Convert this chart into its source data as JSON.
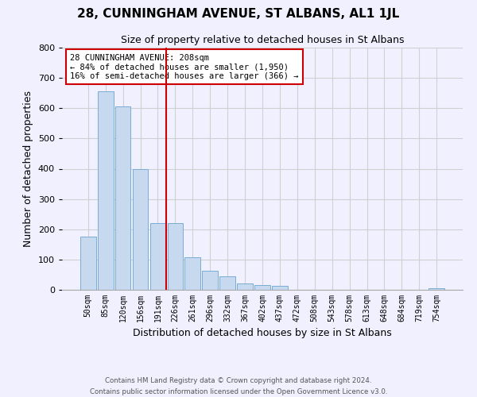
{
  "title": "28, CUNNINGHAM AVENUE, ST ALBANS, AL1 1JL",
  "subtitle": "Size of property relative to detached houses in St Albans",
  "xlabel": "Distribution of detached houses by size in St Albans",
  "ylabel": "Number of detached properties",
  "bar_labels": [
    "50sqm",
    "85sqm",
    "120sqm",
    "156sqm",
    "191sqm",
    "226sqm",
    "261sqm",
    "296sqm",
    "332sqm",
    "367sqm",
    "402sqm",
    "437sqm",
    "472sqm",
    "508sqm",
    "543sqm",
    "578sqm",
    "613sqm",
    "648sqm",
    "684sqm",
    "719sqm",
    "754sqm"
  ],
  "bar_values": [
    175,
    655,
    605,
    400,
    220,
    220,
    108,
    62,
    45,
    22,
    15,
    14,
    0,
    0,
    0,
    0,
    0,
    0,
    0,
    0,
    4
  ],
  "bar_color": "#c6d9ef",
  "bar_edge_color": "#7aadd4",
  "ylim": [
    0,
    800
  ],
  "yticks": [
    0,
    100,
    200,
    300,
    400,
    500,
    600,
    700,
    800
  ],
  "property_line_x": 4.5,
  "annotation_title": "28 CUNNINGHAM AVENUE: 208sqm",
  "annotation_line1": "← 84% of detached houses are smaller (1,950)",
  "annotation_line2": "16% of semi-detached houses are larger (366) →",
  "annotation_box_color": "#ffffff",
  "annotation_box_edge_color": "#cc0000",
  "line_color": "#cc0000",
  "footer_line1": "Contains HM Land Registry data © Crown copyright and database right 2024.",
  "footer_line2": "Contains public sector information licensed under the Open Government Licence v3.0.",
  "bg_color": "#f0f0ff",
  "grid_color": "#d0d0d0",
  "title_fontsize": 11,
  "subtitle_fontsize": 9,
  "ylabel_fontsize": 9,
  "xlabel_fontsize": 9,
  "tick_fontsize": 8,
  "xtick_fontsize": 7
}
